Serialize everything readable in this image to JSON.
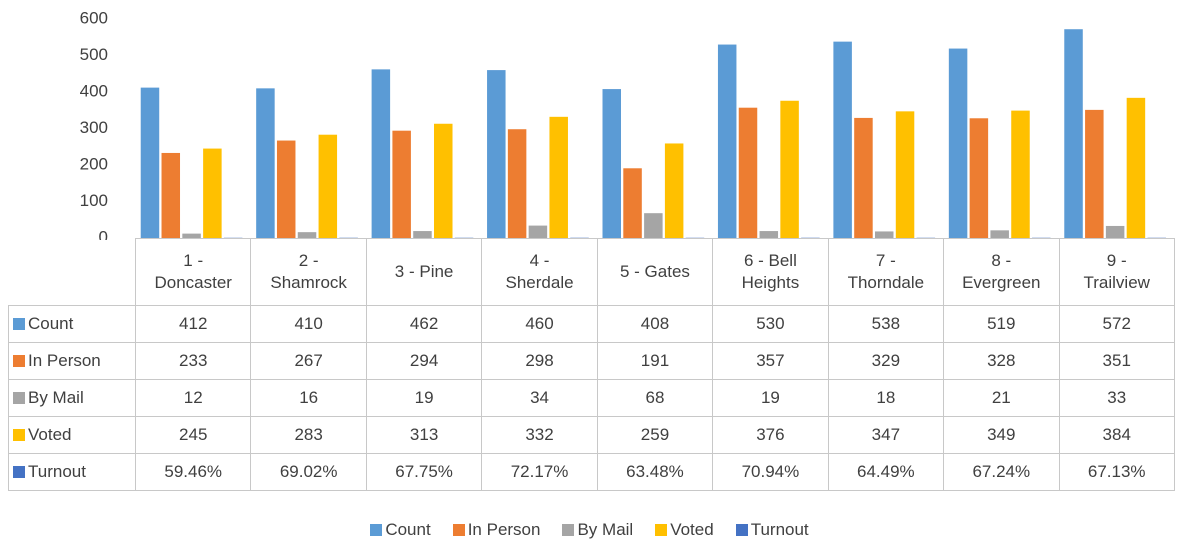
{
  "chart_data": {
    "type": "bar",
    "categories": [
      "1 - Doncaster",
      "2 - Shamrock",
      "3 - Pine",
      "4 - Sherdale",
      "5 - Gates",
      "6 - Bell Heights",
      "7 - Thorndale",
      "8 - Evergreen",
      "9 - Trailview"
    ],
    "series": [
      {
        "name": "Count",
        "color": "#5b9bd5",
        "values": [
          412,
          410,
          462,
          460,
          408,
          530,
          538,
          519,
          572
        ]
      },
      {
        "name": "In Person",
        "color": "#ed7d31",
        "values": [
          233,
          267,
          294,
          298,
          191,
          357,
          329,
          328,
          351
        ]
      },
      {
        "name": "By Mail",
        "color": "#a5a5a5",
        "values": [
          12,
          16,
          19,
          34,
          68,
          19,
          18,
          21,
          33
        ]
      },
      {
        "name": "Voted",
        "color": "#ffc000",
        "values": [
          245,
          283,
          313,
          332,
          259,
          376,
          347,
          349,
          384
        ]
      },
      {
        "name": "Turnout",
        "color": "#4472c4",
        "values": [
          0.5946,
          0.6902,
          0.6775,
          0.7217,
          0.6348,
          0.7094,
          0.6449,
          0.6724,
          0.6713
        ],
        "value_labels": [
          "59.46%",
          "69.02%",
          "67.75%",
          "72.17%",
          "63.48%",
          "70.94%",
          "64.49%",
          "67.24%",
          "67.13%"
        ]
      }
    ],
    "ylim": [
      0,
      600
    ],
    "yticks": [
      0,
      100,
      200,
      300,
      400,
      500,
      600
    ],
    "grid": false,
    "legend": "bottom",
    "data_table": true
  }
}
